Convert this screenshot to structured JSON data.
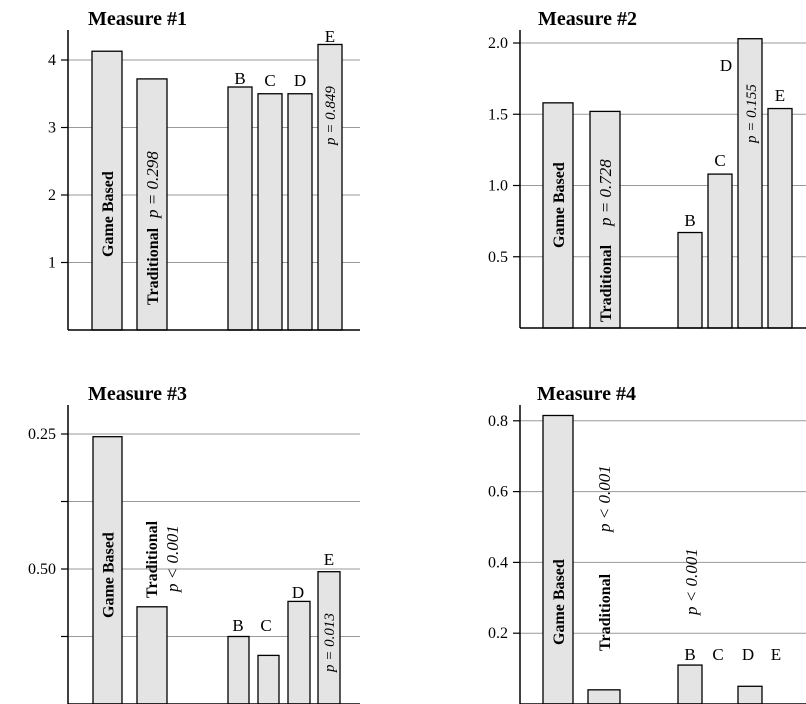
{
  "chart_data": [
    {
      "type": "bar",
      "title": "Measure #1",
      "categories": [
        "Game Based",
        "Traditional",
        "B",
        "C",
        "D",
        "E"
      ],
      "values": [
        4.13,
        3.72,
        3.6,
        3.5,
        3.5,
        4.23
      ],
      "yticks": [
        "1",
        "2",
        "3",
        "4"
      ],
      "ylim": [
        0,
        4.4
      ],
      "grid": true,
      "annotations": [
        "p = 0.298",
        "p = 0.849"
      ]
    },
    {
      "type": "bar",
      "title": "Measure #2",
      "categories": [
        "Game Based",
        "Traditional",
        "B",
        "C",
        "D",
        "E"
      ],
      "values": [
        1.58,
        1.52,
        0.67,
        1.08,
        2.03,
        1.54
      ],
      "yticks": [
        "0.5",
        "1.0",
        "1.5",
        "2.0"
      ],
      "ylim": [
        0,
        2.1
      ],
      "grid": true,
      "annotations": [
        "p = 0.728",
        "p = 0.155"
      ]
    },
    {
      "type": "bar",
      "title": "Measure #3",
      "categories": [
        "Game Based",
        "Traditional",
        "B",
        "C",
        "D",
        "E"
      ],
      "values": [
        0.495,
        0.18,
        0.125,
        0.09,
        0.19,
        0.245
      ],
      "yticks": [
        "0.25",
        "0.50"
      ],
      "ylim": [
        0,
        0.53
      ],
      "grid": true,
      "annotations": [
        "p < 0.001",
        "p = 0.013"
      ]
    },
    {
      "type": "bar",
      "title": "Measure #4",
      "categories": [
        "Game Based",
        "Traditional",
        "B",
        "C",
        "D",
        "E"
      ],
      "values": [
        0.815,
        0.04,
        0.11,
        0.0,
        0.05,
        0.0
      ],
      "yticks": [
        "0.2",
        "0.4",
        "0.6",
        "0.8"
      ],
      "ylim": [
        0,
        0.85
      ],
      "grid": true,
      "annotations": [
        "p < 0.001",
        "p < 0.001"
      ]
    }
  ]
}
